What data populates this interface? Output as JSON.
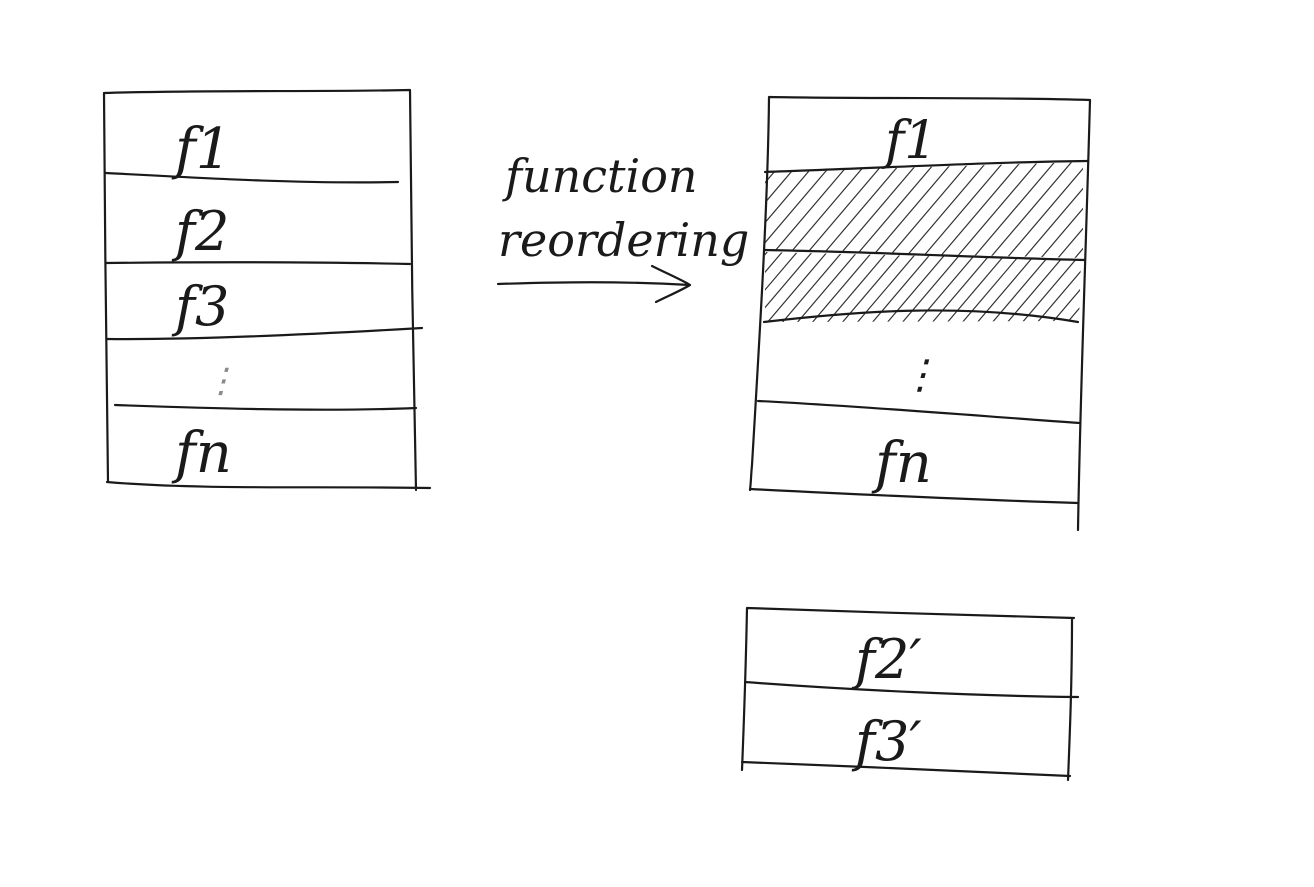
{
  "original_layout": {
    "blocks": [
      {
        "label": "f1"
      },
      {
        "label": "f2"
      },
      {
        "label": "f3"
      },
      {
        "label": "⋮"
      },
      {
        "label": "fn"
      }
    ]
  },
  "transformation": {
    "label_line1": "function",
    "label_line2": "reordering"
  },
  "reordered_layout": {
    "blocks": [
      {
        "label": "f1",
        "state": "kept"
      },
      {
        "label": "",
        "state": "hatched"
      },
      {
        "label": "",
        "state": "hatched"
      },
      {
        "label": "⋮",
        "state": "gap"
      },
      {
        "label": "fn",
        "state": "kept"
      }
    ]
  },
  "relocated_layout": {
    "blocks": [
      {
        "label": "f2′"
      },
      {
        "label": "f3′"
      }
    ]
  },
  "colors": {
    "ink": "#1a1a1a",
    "paper": "#ffffff"
  }
}
